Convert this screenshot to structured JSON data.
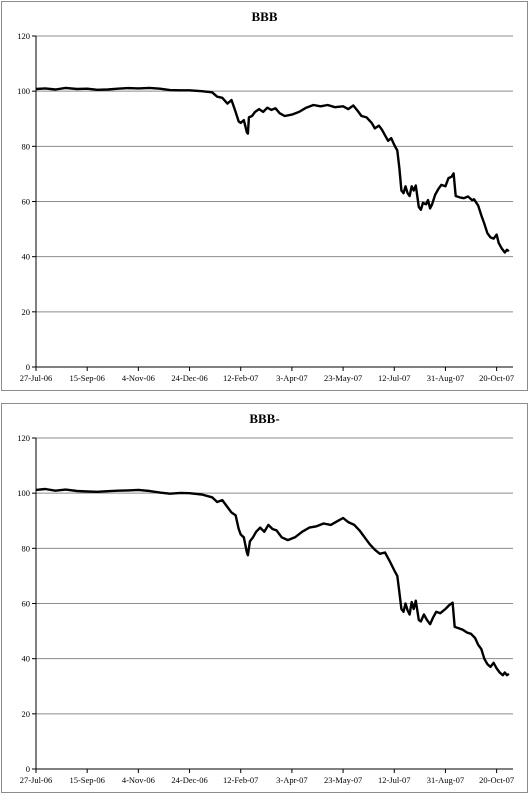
{
  "chart_data": [
    {
      "type": "line",
      "title": "BBB",
      "ylim": [
        0,
        120
      ],
      "yticks": [
        0,
        20,
        40,
        60,
        80,
        100,
        120
      ],
      "xticks": [
        "27-Jul-06",
        "15-Sep-06",
        "4-Nov-06",
        "24-Dec-06",
        "12-Feb-07",
        "3-Apr-07",
        "23-May-07",
        "12-Jul-07",
        "31-Aug-07",
        "20-Oct-07"
      ],
      "xlim": [
        "2006-07-27",
        "2007-11-05"
      ],
      "grid": "horizontal",
      "line_color": "#000000",
      "series": [
        {
          "points": [
            [
              "2006-07-27",
              100.8
            ],
            [
              "2006-08-05",
              101.0
            ],
            [
              "2006-08-15",
              100.6
            ],
            [
              "2006-08-25",
              101.2
            ],
            [
              "2006-09-05",
              100.8
            ],
            [
              "2006-09-15",
              100.9
            ],
            [
              "2006-09-25",
              100.5
            ],
            [
              "2006-10-05",
              100.6
            ],
            [
              "2006-10-15",
              100.9
            ],
            [
              "2006-10-25",
              101.1
            ],
            [
              "2006-11-04",
              101.0
            ],
            [
              "2006-11-15",
              101.2
            ],
            [
              "2006-11-25",
              100.9
            ],
            [
              "2006-12-05",
              100.4
            ],
            [
              "2006-12-15",
              100.3
            ],
            [
              "2006-12-24",
              100.3
            ],
            [
              "2007-01-05",
              100.0
            ],
            [
              "2007-01-15",
              99.6
            ],
            [
              "2007-01-20",
              98.0
            ],
            [
              "2007-01-25",
              97.6
            ],
            [
              "2007-01-30",
              95.5
            ],
            [
              "2007-02-03",
              96.8
            ],
            [
              "2007-02-07",
              92.5
            ],
            [
              "2007-02-10",
              89.0
            ],
            [
              "2007-02-12",
              88.5
            ],
            [
              "2007-02-15",
              89.5
            ],
            [
              "2007-02-18",
              85.0
            ],
            [
              "2007-02-19",
              84.6
            ],
            [
              "2007-02-20",
              90.5
            ],
            [
              "2007-02-23",
              91.0
            ],
            [
              "2007-02-26",
              92.5
            ],
            [
              "2007-03-02",
              93.5
            ],
            [
              "2007-03-06",
              92.5
            ],
            [
              "2007-03-10",
              94.0
            ],
            [
              "2007-03-14",
              93.2
            ],
            [
              "2007-03-18",
              93.8
            ],
            [
              "2007-03-22",
              92.0
            ],
            [
              "2007-03-27",
              91.0
            ],
            [
              "2007-04-03",
              91.5
            ],
            [
              "2007-04-10",
              92.5
            ],
            [
              "2007-04-17",
              94.0
            ],
            [
              "2007-04-24",
              95.0
            ],
            [
              "2007-05-01",
              94.5
            ],
            [
              "2007-05-08",
              95.0
            ],
            [
              "2007-05-15",
              94.2
            ],
            [
              "2007-05-23",
              94.5
            ],
            [
              "2007-05-28",
              93.5
            ],
            [
              "2007-06-02",
              94.8
            ],
            [
              "2007-06-06",
              93.0
            ],
            [
              "2007-06-10",
              91.0
            ],
            [
              "2007-06-15",
              90.5
            ],
            [
              "2007-06-20",
              88.5
            ],
            [
              "2007-06-23",
              86.5
            ],
            [
              "2007-06-27",
              87.5
            ],
            [
              "2007-06-30",
              86.0
            ],
            [
              "2007-07-03",
              84.0
            ],
            [
              "2007-07-06",
              82.0
            ],
            [
              "2007-07-09",
              83.0
            ],
            [
              "2007-07-12",
              80.5
            ],
            [
              "2007-07-15",
              78.5
            ],
            [
              "2007-07-17",
              72.0
            ],
            [
              "2007-07-19",
              64.0
            ],
            [
              "2007-07-21",
              63.0
            ],
            [
              "2007-07-23",
              65.5
            ],
            [
              "2007-07-25",
              63.0
            ],
            [
              "2007-07-27",
              62.0
            ],
            [
              "2007-07-29",
              65.5
            ],
            [
              "2007-07-31",
              64.0
            ],
            [
              "2007-08-02",
              65.8
            ],
            [
              "2007-08-05",
              58.0
            ],
            [
              "2007-08-07",
              57.0
            ],
            [
              "2007-08-09",
              59.5
            ],
            [
              "2007-08-12",
              59.0
            ],
            [
              "2007-08-14",
              60.5
            ],
            [
              "2007-08-16",
              57.5
            ],
            [
              "2007-08-18",
              59.0
            ],
            [
              "2007-08-21",
              62.5
            ],
            [
              "2007-08-24",
              64.5
            ],
            [
              "2007-08-27",
              66.0
            ],
            [
              "2007-08-31",
              65.5
            ],
            [
              "2007-09-03",
              68.5
            ],
            [
              "2007-09-06",
              69.0
            ],
            [
              "2007-09-08",
              70.2
            ],
            [
              "2007-09-10",
              62.0
            ],
            [
              "2007-09-14",
              61.5
            ],
            [
              "2007-09-18",
              61.2
            ],
            [
              "2007-09-22",
              61.8
            ],
            [
              "2007-09-26",
              60.5
            ],
            [
              "2007-09-28",
              60.8
            ],
            [
              "2007-10-02",
              58.5
            ],
            [
              "2007-10-05",
              55.0
            ],
            [
              "2007-10-08",
              52.0
            ],
            [
              "2007-10-11",
              48.5
            ],
            [
              "2007-10-14",
              47.0
            ],
            [
              "2007-10-17",
              46.5
            ],
            [
              "2007-10-20",
              48.0
            ],
            [
              "2007-10-22",
              45.0
            ],
            [
              "2007-10-25",
              43.0
            ],
            [
              "2007-10-28",
              41.5
            ],
            [
              "2007-10-30",
              42.5
            ],
            [
              "2007-11-01",
              42.0
            ]
          ]
        }
      ]
    },
    {
      "type": "line",
      "title": "BBB-",
      "ylim": [
        0,
        120
      ],
      "yticks": [
        0,
        20,
        40,
        60,
        80,
        100,
        120
      ],
      "xticks": [
        "27-Jul-06",
        "15-Sep-06",
        "4-Nov-06",
        "24-Dec-06",
        "12-Feb-07",
        "3-Apr-07",
        "23-May-07",
        "12-Jul-07",
        "31-Aug-07",
        "20-Oct-07"
      ],
      "xlim": [
        "2006-07-27",
        "2007-11-05"
      ],
      "grid": "horizontal",
      "line_color": "#000000",
      "series": [
        {
          "points": [
            [
              "2006-07-27",
              101.2
            ],
            [
              "2006-08-05",
              101.5
            ],
            [
              "2006-08-15",
              100.9
            ],
            [
              "2006-08-25",
              101.3
            ],
            [
              "2006-09-05",
              100.8
            ],
            [
              "2006-09-15",
              100.6
            ],
            [
              "2006-09-25",
              100.5
            ],
            [
              "2006-10-05",
              100.7
            ],
            [
              "2006-10-15",
              100.9
            ],
            [
              "2006-10-25",
              101.0
            ],
            [
              "2006-11-04",
              101.2
            ],
            [
              "2006-11-15",
              100.8
            ],
            [
              "2006-11-25",
              100.2
            ],
            [
              "2006-12-05",
              99.8
            ],
            [
              "2006-12-15",
              100.1
            ],
            [
              "2006-12-24",
              100.0
            ],
            [
              "2007-01-05",
              99.5
            ],
            [
              "2007-01-15",
              98.5
            ],
            [
              "2007-01-20",
              96.8
            ],
            [
              "2007-01-25",
              97.5
            ],
            [
              "2007-01-30",
              95.0
            ],
            [
              "2007-02-03",
              93.0
            ],
            [
              "2007-02-07",
              92.0
            ],
            [
              "2007-02-10",
              87.0
            ],
            [
              "2007-02-12",
              85.0
            ],
            [
              "2007-02-15",
              84.0
            ],
            [
              "2007-02-18",
              78.5
            ],
            [
              "2007-02-19",
              77.5
            ],
            [
              "2007-02-21",
              82.5
            ],
            [
              "2007-02-24",
              84.0
            ],
            [
              "2007-02-27",
              86.0
            ],
            [
              "2007-03-03",
              87.5
            ],
            [
              "2007-03-07",
              86.0
            ],
            [
              "2007-03-11",
              88.5
            ],
            [
              "2007-03-15",
              87.0
            ],
            [
              "2007-03-19",
              86.5
            ],
            [
              "2007-03-24",
              84.0
            ],
            [
              "2007-03-30",
              83.0
            ],
            [
              "2007-04-06",
              84.0
            ],
            [
              "2007-04-13",
              86.0
            ],
            [
              "2007-04-20",
              87.5
            ],
            [
              "2007-04-27",
              88.0
            ],
            [
              "2007-05-04",
              89.0
            ],
            [
              "2007-05-11",
              88.5
            ],
            [
              "2007-05-18",
              90.0
            ],
            [
              "2007-05-23",
              91.0
            ],
            [
              "2007-05-28",
              89.5
            ],
            [
              "2007-06-03",
              88.5
            ],
            [
              "2007-06-08",
              86.5
            ],
            [
              "2007-06-13",
              84.0
            ],
            [
              "2007-06-18",
              81.5
            ],
            [
              "2007-06-23",
              79.5
            ],
            [
              "2007-06-28",
              78.0
            ],
            [
              "2007-07-03",
              78.5
            ],
            [
              "2007-07-08",
              75.0
            ],
            [
              "2007-07-12",
              72.0
            ],
            [
              "2007-07-15",
              70.0
            ],
            [
              "2007-07-17",
              64.0
            ],
            [
              "2007-07-19",
              58.0
            ],
            [
              "2007-07-21",
              57.0
            ],
            [
              "2007-07-23",
              60.0
            ],
            [
              "2007-07-25",
              57.5
            ],
            [
              "2007-07-27",
              56.0
            ],
            [
              "2007-07-29",
              60.5
            ],
            [
              "2007-07-31",
              58.0
            ],
            [
              "2007-08-02",
              61.0
            ],
            [
              "2007-08-05",
              54.0
            ],
            [
              "2007-08-07",
              53.5
            ],
            [
              "2007-08-10",
              56.0
            ],
            [
              "2007-08-13",
              54.0
            ],
            [
              "2007-08-16",
              52.5
            ],
            [
              "2007-08-19",
              55.0
            ],
            [
              "2007-08-22",
              57.0
            ],
            [
              "2007-08-26",
              56.5
            ],
            [
              "2007-08-31",
              58.0
            ],
            [
              "2007-09-04",
              59.5
            ],
            [
              "2007-09-07",
              60.3
            ],
            [
              "2007-09-09",
              51.5
            ],
            [
              "2007-09-13",
              51.0
            ],
            [
              "2007-09-17",
              50.5
            ],
            [
              "2007-09-21",
              49.5
            ],
            [
              "2007-09-25",
              49.0
            ],
            [
              "2007-09-29",
              47.5
            ],
            [
              "2007-10-02",
              45.0
            ],
            [
              "2007-10-05",
              43.5
            ],
            [
              "2007-10-08",
              40.0
            ],
            [
              "2007-10-11",
              38.0
            ],
            [
              "2007-10-14",
              37.0
            ],
            [
              "2007-10-17",
              38.5
            ],
            [
              "2007-10-20",
              36.5
            ],
            [
              "2007-10-23",
              35.0
            ],
            [
              "2007-10-26",
              34.0
            ],
            [
              "2007-10-28",
              35.0
            ],
            [
              "2007-10-30",
              34.0
            ],
            [
              "2007-11-01",
              34.5
            ]
          ]
        }
      ]
    }
  ]
}
